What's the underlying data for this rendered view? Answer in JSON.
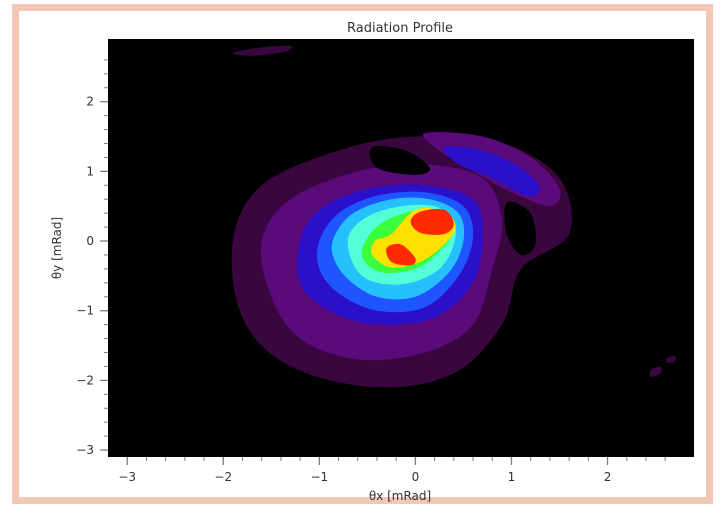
{
  "chart_data": {
    "type": "heatmap",
    "title": "Radiation Profile",
    "xlabel": "θx [mRad]",
    "ylabel": "θy [mRad]",
    "xlim": [
      -3.2,
      2.9
    ],
    "ylim": [
      -3.1,
      2.9
    ],
    "x_ticks": [
      -3,
      -2,
      -1,
      0,
      1,
      2
    ],
    "y_ticks": [
      -3,
      -2,
      -1,
      0,
      1,
      2
    ],
    "background_color": "#000000",
    "colormap": [
      "#3a0640",
      "#5b0a7a",
      "#2a10c8",
      "#1f55ff",
      "#26c0ff",
      "#53ffd6",
      "#3cff3c",
      "#ffe000",
      "#ff2a00"
    ],
    "contours": [
      {
        "level": 1,
        "color": "#3a0640",
        "points": [
          [
            -1.9,
            0.0
          ],
          [
            -1.6,
            0.8
          ],
          [
            -0.8,
            1.3
          ],
          [
            0.0,
            1.5
          ],
          [
            0.9,
            1.4
          ],
          [
            1.5,
            0.9
          ],
          [
            1.6,
            0.1
          ],
          [
            1.1,
            -0.4
          ],
          [
            0.9,
            -1.2
          ],
          [
            0.4,
            -1.9
          ],
          [
            -0.4,
            -2.1
          ],
          [
            -1.3,
            -1.8
          ],
          [
            -1.8,
            -1.1
          ]
        ]
      },
      {
        "level": 2,
        "color": "#5b0a7a",
        "points": [
          [
            -1.6,
            0.0
          ],
          [
            -1.3,
            0.6
          ],
          [
            -0.6,
            1.0
          ],
          [
            0.1,
            1.1
          ],
          [
            0.7,
            0.9
          ],
          [
            0.9,
            0.3
          ],
          [
            0.8,
            -0.4
          ],
          [
            0.6,
            -1.2
          ],
          [
            0.1,
            -1.6
          ],
          [
            -0.6,
            -1.7
          ],
          [
            -1.2,
            -1.4
          ],
          [
            -1.5,
            -0.8
          ]
        ]
      },
      {
        "level": 3,
        "color": "#2a10c8",
        "points": [
          [
            -1.2,
            0.0
          ],
          [
            -1.0,
            0.45
          ],
          [
            -0.5,
            0.75
          ],
          [
            0.1,
            0.8
          ],
          [
            0.6,
            0.6
          ],
          [
            0.7,
            0.1
          ],
          [
            0.6,
            -0.6
          ],
          [
            0.2,
            -1.1
          ],
          [
            -0.4,
            -1.2
          ],
          [
            -0.9,
            -1.0
          ],
          [
            -1.2,
            -0.6
          ]
        ]
      },
      {
        "level": 4,
        "color": "#1f55ff",
        "points": [
          [
            -1.0,
            0.0
          ],
          [
            -0.8,
            0.4
          ],
          [
            -0.4,
            0.65
          ],
          [
            0.1,
            0.7
          ],
          [
            0.5,
            0.5
          ],
          [
            0.6,
            0.05
          ],
          [
            0.45,
            -0.5
          ],
          [
            0.1,
            -0.95
          ],
          [
            -0.4,
            -1.0
          ],
          [
            -0.8,
            -0.75
          ],
          [
            -1.0,
            -0.4
          ]
        ]
      },
      {
        "level": 5,
        "color": "#26c0ff",
        "points": [
          [
            -0.85,
            0.05
          ],
          [
            -0.65,
            0.4
          ],
          [
            -0.25,
            0.6
          ],
          [
            0.15,
            0.6
          ],
          [
            0.45,
            0.4
          ],
          [
            0.5,
            0.0
          ],
          [
            0.35,
            -0.45
          ],
          [
            0.0,
            -0.8
          ],
          [
            -0.4,
            -0.8
          ],
          [
            -0.7,
            -0.55
          ],
          [
            -0.85,
            -0.25
          ]
        ]
      },
      {
        "level": 6,
        "color": "#53ffd6",
        "points": [
          [
            -0.7,
            0.05
          ],
          [
            -0.5,
            0.35
          ],
          [
            -0.15,
            0.5
          ],
          [
            0.2,
            0.5
          ],
          [
            0.4,
            0.3
          ],
          [
            0.4,
            -0.05
          ],
          [
            0.25,
            -0.4
          ],
          [
            -0.05,
            -0.6
          ],
          [
            -0.4,
            -0.6
          ],
          [
            -0.62,
            -0.4
          ]
        ]
      },
      {
        "level": 7,
        "color": "#3cff3c",
        "points": [
          [
            -0.5,
            0.05
          ],
          [
            -0.3,
            0.3
          ],
          [
            0.05,
            0.45
          ],
          [
            0.3,
            0.4
          ],
          [
            0.4,
            0.15
          ],
          [
            0.25,
            -0.15
          ],
          [
            0.0,
            -0.4
          ],
          [
            -0.35,
            -0.45
          ],
          [
            -0.55,
            -0.25
          ]
        ]
      },
      {
        "level": 8,
        "color": "#ffe000",
        "points": [
          [
            -0.42,
            0.0
          ],
          [
            -0.25,
            0.1
          ],
          [
            0.0,
            0.45
          ],
          [
            0.3,
            0.42
          ],
          [
            0.42,
            0.2
          ],
          [
            0.3,
            -0.05
          ],
          [
            0.05,
            -0.3
          ],
          [
            -0.25,
            -0.38
          ],
          [
            -0.45,
            -0.2
          ]
        ]
      },
      {
        "level": 9,
        "color": "#ff2a00",
        "points": [
          [
            0.05,
            0.42
          ],
          [
            0.3,
            0.45
          ],
          [
            0.4,
            0.25
          ],
          [
            0.3,
            0.1
          ],
          [
            0.05,
            0.12
          ],
          [
            -0.05,
            0.28
          ]
        ]
      },
      {
        "level": 9,
        "color": "#ff2a00",
        "points": [
          [
            -0.3,
            -0.1
          ],
          [
            -0.15,
            -0.05
          ],
          [
            0.0,
            -0.25
          ],
          [
            -0.05,
            -0.35
          ],
          [
            -0.25,
            -0.3
          ]
        ]
      },
      {
        "level": 2,
        "color": "#5b0a7a",
        "points": [
          [
            0.1,
            1.55
          ],
          [
            0.7,
            1.5
          ],
          [
            1.2,
            1.2
          ],
          [
            1.5,
            0.75
          ],
          [
            1.4,
            0.5
          ],
          [
            1.0,
            0.7
          ],
          [
            0.6,
            1.0
          ],
          [
            0.25,
            1.3
          ]
        ]
      },
      {
        "level": 3,
        "color": "#2a10c8",
        "points": [
          [
            0.3,
            1.35
          ],
          [
            0.7,
            1.3
          ],
          [
            1.1,
            1.05
          ],
          [
            1.3,
            0.75
          ],
          [
            1.15,
            0.65
          ],
          [
            0.8,
            0.9
          ],
          [
            0.45,
            1.1
          ]
        ]
      },
      {
        "level": 1,
        "color": "#3a0640",
        "points": [
          [
            -1.9,
            2.7
          ],
          [
            -1.6,
            2.78
          ],
          [
            -1.3,
            2.8
          ],
          [
            -1.35,
            2.72
          ],
          [
            -1.7,
            2.66
          ]
        ]
      },
      {
        "level": 1,
        "color": "#3a0640",
        "points": [
          [
            2.45,
            -1.85
          ],
          [
            2.55,
            -1.8
          ],
          [
            2.55,
            -1.9
          ],
          [
            2.45,
            -1.95
          ]
        ]
      },
      {
        "level": 1,
        "color": "#3a0640",
        "points": [
          [
            2.62,
            -1.68
          ],
          [
            2.7,
            -1.65
          ],
          [
            2.7,
            -1.73
          ],
          [
            2.62,
            -1.75
          ]
        ]
      }
    ],
    "holes": [
      {
        "color": "#000000",
        "points": [
          [
            -0.45,
            1.35
          ],
          [
            -0.1,
            1.3
          ],
          [
            0.15,
            1.05
          ],
          [
            0.0,
            0.95
          ],
          [
            -0.4,
            1.05
          ]
        ]
      },
      {
        "color": "#000000",
        "points": [
          [
            0.95,
            0.55
          ],
          [
            1.2,
            0.4
          ],
          [
            1.25,
            -0.05
          ],
          [
            1.1,
            -0.2
          ],
          [
            0.95,
            0.1
          ]
        ]
      }
    ]
  }
}
